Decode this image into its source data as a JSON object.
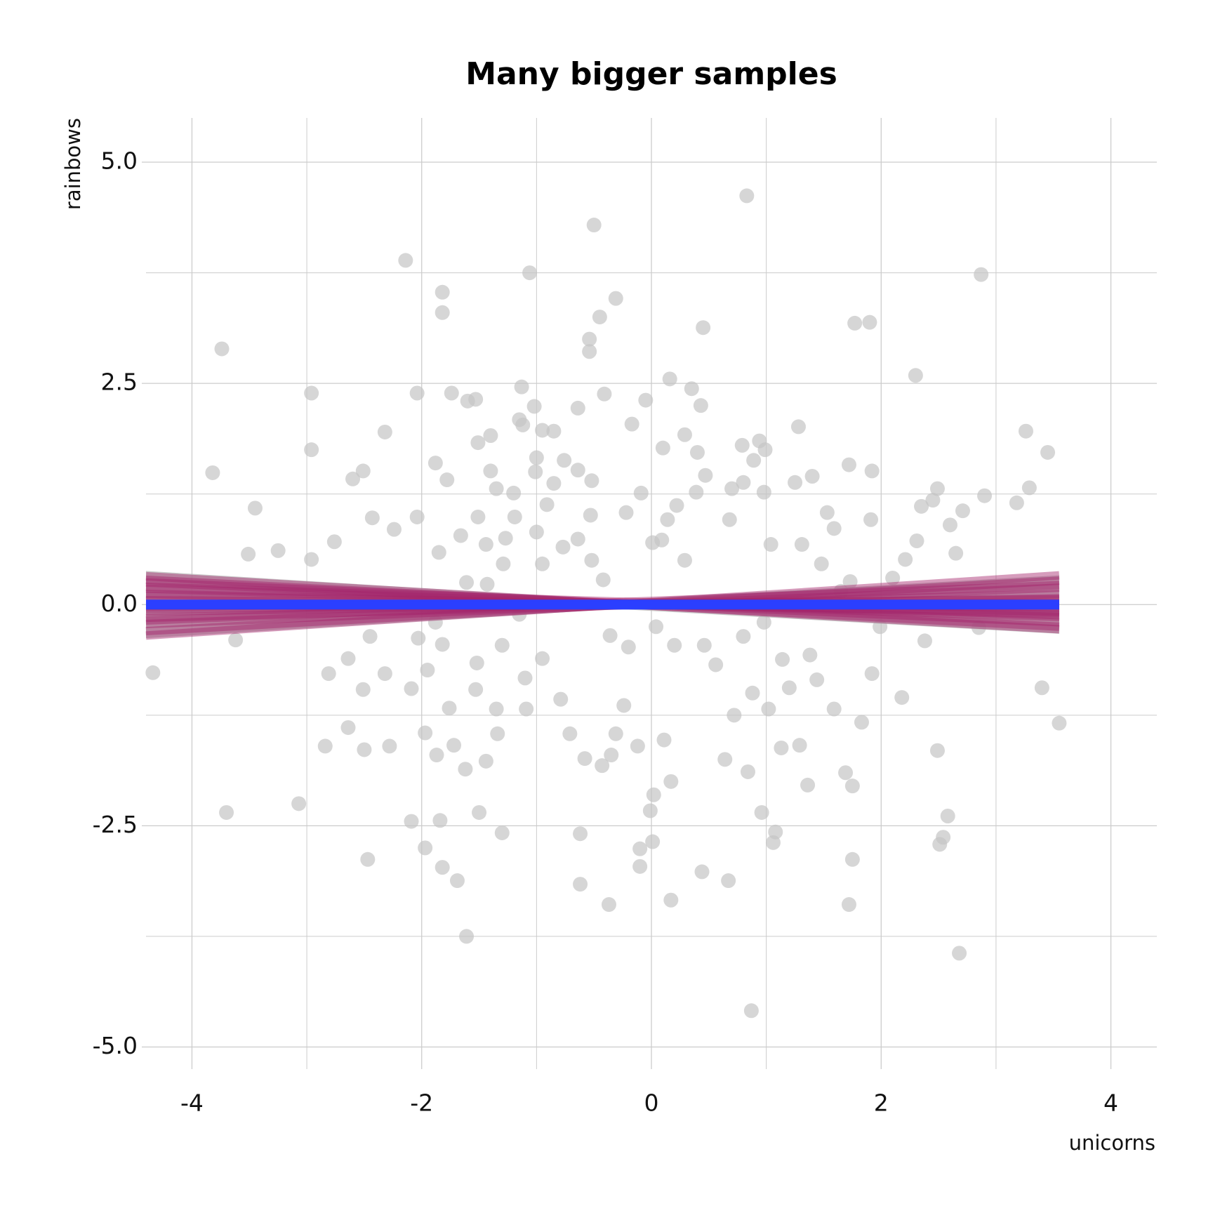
{
  "chart_data": {
    "type": "scatter",
    "title": "Many bigger samples",
    "x_label": "unicorns",
    "y_label": "rainbows",
    "xlim": [
      -4.4,
      4.4
    ],
    "ylim": [
      -5.25,
      5.5
    ],
    "xticks": [
      -4,
      -2,
      0,
      2,
      4
    ],
    "yticks": [
      {
        "value": -5,
        "label": "-5.0"
      },
      {
        "value": -2.5,
        "label": "-2.5"
      },
      {
        "value": 0,
        "label": "0.0"
      },
      {
        "value": 2.5,
        "label": "2.5"
      },
      {
        "value": 5,
        "label": "5.0"
      }
    ],
    "xminor": [
      -3,
      -1,
      1,
      3
    ],
    "yminor": [
      -3.75,
      -1.25,
      1.25,
      3.75
    ],
    "grid": true,
    "grid_color": "#cccccc",
    "point_color": "#c4c4c4",
    "points": [
      {
        "x": -4.34,
        "y": -0.77
      },
      {
        "x": -3.74,
        "y": 2.89
      },
      {
        "x": -3.82,
        "y": 1.49
      },
      {
        "x": -3.7,
        "y": -2.35
      },
      {
        "x": -3.62,
        "y": -0.4
      },
      {
        "x": -3.51,
        "y": 0.57
      },
      {
        "x": -3.45,
        "y": 1.09
      },
      {
        "x": -3.25,
        "y": 0.61
      },
      {
        "x": -3.07,
        "y": -2.25
      },
      {
        "x": -2.96,
        "y": 1.75
      },
      {
        "x": -2.96,
        "y": 2.39
      },
      {
        "x": -2.96,
        "y": 0.51
      },
      {
        "x": -2.84,
        "y": -1.6
      },
      {
        "x": -2.81,
        "y": -0.78
      },
      {
        "x": -2.76,
        "y": 0.71
      },
      {
        "x": -2.64,
        "y": -0.61
      },
      {
        "x": -2.64,
        "y": -1.39
      },
      {
        "x": -2.6,
        "y": 1.42
      },
      {
        "x": -2.51,
        "y": 1.51
      },
      {
        "x": -2.51,
        "y": -0.96
      },
      {
        "x": -2.5,
        "y": -1.64
      },
      {
        "x": -2.47,
        "y": -2.88
      },
      {
        "x": -2.45,
        "y": -0.36
      },
      {
        "x": -2.43,
        "y": 0.98
      },
      {
        "x": -2.32,
        "y": 1.95
      },
      {
        "x": -2.32,
        "y": -0.78
      },
      {
        "x": -2.28,
        "y": -1.6
      },
      {
        "x": -2.24,
        "y": 0.85
      },
      {
        "x": -2.14,
        "y": 3.89
      },
      {
        "x": -2.09,
        "y": -2.45
      },
      {
        "x": -2.09,
        "y": -0.95
      },
      {
        "x": -2.04,
        "y": 0.99
      },
      {
        "x": -2.04,
        "y": 2.39
      },
      {
        "x": -2.03,
        "y": -0.38
      },
      {
        "x": -1.97,
        "y": -1.45
      },
      {
        "x": -1.97,
        "y": -2.75
      },
      {
        "x": -1.95,
        "y": -0.74
      },
      {
        "x": -1.88,
        "y": 1.6
      },
      {
        "x": -1.87,
        "y": -1.7
      },
      {
        "x": -1.85,
        "y": 0.59
      },
      {
        "x": -1.84,
        "y": -2.44
      },
      {
        "x": -1.82,
        "y": -0.45
      },
      {
        "x": -1.82,
        "y": 3.53
      },
      {
        "x": -1.82,
        "y": 3.3
      },
      {
        "x": -1.82,
        "y": -2.97
      },
      {
        "x": -1.78,
        "y": 1.41
      },
      {
        "x": -1.76,
        "y": -1.17
      },
      {
        "x": -1.74,
        "y": 2.39
      },
      {
        "x": -1.72,
        "y": -1.59
      },
      {
        "x": -1.69,
        "y": -3.12
      },
      {
        "x": -1.66,
        "y": 0.78
      },
      {
        "x": -1.62,
        "y": -1.86
      },
      {
        "x": -1.61,
        "y": -3.75
      },
      {
        "x": -1.6,
        "y": 2.3
      },
      {
        "x": -1.53,
        "y": 2.32
      },
      {
        "x": -1.51,
        "y": 1.83
      },
      {
        "x": -1.51,
        "y": 0.99
      },
      {
        "x": -1.5,
        "y": -2.35
      },
      {
        "x": -1.52,
        "y": -0.66
      },
      {
        "x": -1.53,
        "y": -0.96
      },
      {
        "x": -1.44,
        "y": -1.77
      },
      {
        "x": -1.43,
        "y": 0.23
      },
      {
        "x": -1.4,
        "y": 1.91
      },
      {
        "x": -1.4,
        "y": 1.51
      },
      {
        "x": -1.35,
        "y": 1.31
      },
      {
        "x": -1.35,
        "y": -1.18
      },
      {
        "x": -1.34,
        "y": -1.46
      },
      {
        "x": -1.3,
        "y": -2.58
      },
      {
        "x": -1.3,
        "y": -0.46
      },
      {
        "x": -1.27,
        "y": 0.75
      },
      {
        "x": -1.29,
        "y": 0.46
      },
      {
        "x": -1.2,
        "y": 1.26
      },
      {
        "x": -1.19,
        "y": 0.99
      },
      {
        "x": -1.15,
        "y": 2.09
      },
      {
        "x": -1.13,
        "y": 2.46
      },
      {
        "x": -1.12,
        "y": 2.03
      },
      {
        "x": -1.1,
        "y": -0.83
      },
      {
        "x": -1.09,
        "y": -1.18
      },
      {
        "x": -1.06,
        "y": 3.75
      },
      {
        "x": -1.02,
        "y": 2.24
      },
      {
        "x": -1.01,
        "y": 1.5
      },
      {
        "x": -1.0,
        "y": 1.66
      },
      {
        "x": -0.95,
        "y": -0.61
      },
      {
        "x": -0.95,
        "y": 1.97
      },
      {
        "x": -0.91,
        "y": 1.13
      },
      {
        "x": -0.85,
        "y": 1.96
      },
      {
        "x": -0.85,
        "y": 1.37
      },
      {
        "x": -0.79,
        "y": -1.07
      },
      {
        "x": -0.76,
        "y": 1.63
      },
      {
        "x": -0.71,
        "y": -1.46
      },
      {
        "x": -0.64,
        "y": 2.22
      },
      {
        "x": -0.62,
        "y": -2.59
      },
      {
        "x": -0.62,
        "y": -3.16
      },
      {
        "x": -0.64,
        "y": 1.52
      },
      {
        "x": -0.58,
        "y": -1.74
      },
      {
        "x": -0.54,
        "y": 3.0
      },
      {
        "x": -0.54,
        "y": 2.86
      },
      {
        "x": -0.53,
        "y": 1.01
      },
      {
        "x": -0.52,
        "y": 1.4
      },
      {
        "x": -0.5,
        "y": 4.29
      },
      {
        "x": -0.45,
        "y": 3.25
      },
      {
        "x": -0.43,
        "y": -1.82
      },
      {
        "x": -0.41,
        "y": 2.38
      },
      {
        "x": -0.37,
        "y": -3.39
      },
      {
        "x": -0.35,
        "y": -1.7
      },
      {
        "x": -0.31,
        "y": 3.46
      },
      {
        "x": -0.31,
        "y": -1.46
      },
      {
        "x": -0.24,
        "y": -1.14
      },
      {
        "x": -0.22,
        "y": 1.04
      },
      {
        "x": -0.17,
        "y": 2.04
      },
      {
        "x": -0.12,
        "y": -1.6
      },
      {
        "x": -0.1,
        "y": -2.96
      },
      {
        "x": -0.1,
        "y": -2.76
      },
      {
        "x": -0.09,
        "y": 1.26
      },
      {
        "x": -0.05,
        "y": 2.31
      },
      {
        "x": 0.02,
        "y": -2.15
      },
      {
        "x": -0.01,
        "y": -2.33
      },
      {
        "x": 0.01,
        "y": -2.68
      },
      {
        "x": 0.1,
        "y": 1.77
      },
      {
        "x": 0.11,
        "y": -1.53
      },
      {
        "x": 0.16,
        "y": 2.55
      },
      {
        "x": 0.17,
        "y": -2.0
      },
      {
        "x": 0.17,
        "y": -3.34
      },
      {
        "x": 0.29,
        "y": 1.92
      },
      {
        "x": 0.35,
        "y": 2.44
      },
      {
        "x": 0.4,
        "y": 1.72
      },
      {
        "x": 0.43,
        "y": 2.25
      },
      {
        "x": 0.45,
        "y": 3.13
      },
      {
        "x": 0.44,
        "y": -3.02
      },
      {
        "x": 0.47,
        "y": 1.46
      },
      {
        "x": 0.56,
        "y": -0.68
      },
      {
        "x": 0.64,
        "y": -1.75
      },
      {
        "x": 0.67,
        "y": -3.12
      },
      {
        "x": 0.72,
        "y": -1.25
      },
      {
        "x": 0.79,
        "y": 1.8
      },
      {
        "x": 0.83,
        "y": 4.62
      },
      {
        "x": 0.84,
        "y": -1.89
      },
      {
        "x": 0.87,
        "y": -4.59
      },
      {
        "x": 0.88,
        "y": -1.0
      },
      {
        "x": 0.89,
        "y": 1.63
      },
      {
        "x": 0.94,
        "y": 1.85
      },
      {
        "x": 0.96,
        "y": -2.35
      },
      {
        "x": 0.99,
        "y": 1.75
      },
      {
        "x": 1.02,
        "y": -1.18
      },
      {
        "x": 1.06,
        "y": -2.69
      },
      {
        "x": 1.08,
        "y": -2.57
      },
      {
        "x": 1.13,
        "y": -1.62
      },
      {
        "x": 1.2,
        "y": -0.94
      },
      {
        "x": 1.25,
        "y": 1.38
      },
      {
        "x": 1.28,
        "y": 2.01
      },
      {
        "x": 1.29,
        "y": -1.59
      },
      {
        "x": 1.36,
        "y": -2.04
      },
      {
        "x": 1.4,
        "y": 1.45
      },
      {
        "x": 1.44,
        "y": -0.85
      },
      {
        "x": 1.53,
        "y": 1.04
      },
      {
        "x": 1.59,
        "y": -1.18
      },
      {
        "x": 1.59,
        "y": 0.86
      },
      {
        "x": 1.69,
        "y": -1.9
      },
      {
        "x": 1.72,
        "y": -3.39
      },
      {
        "x": 1.72,
        "y": 1.58
      },
      {
        "x": 1.75,
        "y": -2.05
      },
      {
        "x": 1.75,
        "y": -2.88
      },
      {
        "x": 1.77,
        "y": 3.18
      },
      {
        "x": 1.83,
        "y": -1.33
      },
      {
        "x": 1.9,
        "y": 3.19
      },
      {
        "x": 1.92,
        "y": 1.51
      },
      {
        "x": 1.91,
        "y": 0.96
      },
      {
        "x": 1.92,
        "y": -0.78
      },
      {
        "x": 1.99,
        "y": -0.25
      },
      {
        "x": 2.1,
        "y": 0.3
      },
      {
        "x": 2.18,
        "y": -1.05
      },
      {
        "x": 2.21,
        "y": 0.51
      },
      {
        "x": 2.3,
        "y": 2.59
      },
      {
        "x": 2.31,
        "y": 0.72
      },
      {
        "x": 2.35,
        "y": 1.11
      },
      {
        "x": 2.38,
        "y": -0.41
      },
      {
        "x": 2.45,
        "y": 1.18
      },
      {
        "x": 2.49,
        "y": 1.31
      },
      {
        "x": 2.49,
        "y": -1.65
      },
      {
        "x": 2.51,
        "y": -2.71
      },
      {
        "x": 2.54,
        "y": -2.63
      },
      {
        "x": 2.58,
        "y": -2.39
      },
      {
        "x": 2.6,
        "y": 0.9
      },
      {
        "x": 2.65,
        "y": 0.58
      },
      {
        "x": 2.68,
        "y": -3.94
      },
      {
        "x": 2.71,
        "y": 1.06
      },
      {
        "x": 2.85,
        "y": -0.26
      },
      {
        "x": 2.87,
        "y": 3.73
      },
      {
        "x": 2.9,
        "y": 1.23
      },
      {
        "x": 3.18,
        "y": 1.15
      },
      {
        "x": 3.26,
        "y": 1.96
      },
      {
        "x": 3.29,
        "y": 1.32
      },
      {
        "x": 3.4,
        "y": -0.94
      },
      {
        "x": 3.45,
        "y": 1.72
      },
      {
        "x": 3.55,
        "y": -1.34
      },
      {
        "x": 0.01,
        "y": 0.7
      },
      {
        "x": 0.09,
        "y": 0.73
      },
      {
        "x": 0.14,
        "y": 0.96
      },
      {
        "x": 0.22,
        "y": 1.12
      },
      {
        "x": 0.39,
        "y": 1.27
      },
      {
        "x": 0.29,
        "y": 0.5
      },
      {
        "x": -0.52,
        "y": 0.5
      },
      {
        "x": -0.64,
        "y": 0.74
      },
      {
        "x": -0.42,
        "y": 0.28
      },
      {
        "x": -0.36,
        "y": -0.35
      },
      {
        "x": -0.2,
        "y": -0.48
      },
      {
        "x": 0.04,
        "y": -0.25
      },
      {
        "x": 0.2,
        "y": -0.46
      },
      {
        "x": 0.46,
        "y": -0.46
      },
      {
        "x": 0.8,
        "y": -0.36
      },
      {
        "x": 0.98,
        "y": -0.2
      },
      {
        "x": 1.14,
        "y": -0.62
      },
      {
        "x": 1.38,
        "y": -0.57
      },
      {
        "x": -1.15,
        "y": -0.11
      },
      {
        "x": -1.44,
        "y": 0.68
      },
      {
        "x": -0.77,
        "y": 0.65
      },
      {
        "x": -1.0,
        "y": 0.82
      },
      {
        "x": -0.95,
        "y": 0.46
      },
      {
        "x": 1.04,
        "y": 0.68
      },
      {
        "x": 1.31,
        "y": 0.68
      },
      {
        "x": 1.48,
        "y": 0.46
      },
      {
        "x": 1.65,
        "y": 0.15
      },
      {
        "x": 1.73,
        "y": 0.26
      },
      {
        "x": 0.68,
        "y": 0.96
      },
      {
        "x": 0.8,
        "y": 1.38
      },
      {
        "x": 0.7,
        "y": 1.31
      },
      {
        "x": 0.98,
        "y": 1.27
      },
      {
        "x": -1.61,
        "y": 0.25
      },
      {
        "x": -1.88,
        "y": -0.2
      }
    ],
    "ribbon": {
      "x": [
        -4.4,
        -0.3,
        3.55
      ],
      "lower": [
        -0.38,
        -0.05,
        -0.33
      ],
      "upper": [
        0.38,
        0.05,
        0.33
      ],
      "color": "#b8b8b8"
    },
    "fit_color": "#a3236a",
    "fits": [
      {
        "x": [
          -4.4,
          3.55
        ],
        "y": [
          0.32,
          -0.28
        ]
      },
      {
        "x": [
          -4.4,
          3.55
        ],
        "y": [
          0.25,
          -0.2
        ]
      },
      {
        "x": [
          -4.4,
          3.55
        ],
        "y": [
          0.18,
          -0.14
        ]
      },
      {
        "x": [
          -4.4,
          3.55
        ],
        "y": [
          0.1,
          -0.08
        ]
      },
      {
        "x": [
          -4.4,
          3.55
        ],
        "y": [
          0.05,
          -0.03
        ]
      },
      {
        "x": [
          -4.4,
          3.55
        ],
        "y": [
          -0.02,
          0.02
        ]
      },
      {
        "x": [
          -4.4,
          3.55
        ],
        "y": [
          -0.08,
          0.07
        ]
      },
      {
        "x": [
          -4.4,
          3.55
        ],
        "y": [
          -0.15,
          0.12
        ]
      },
      {
        "x": [
          -4.4,
          3.55
        ],
        "y": [
          -0.22,
          0.19
        ]
      },
      {
        "x": [
          -4.4,
          3.55
        ],
        "y": [
          -0.3,
          0.27
        ]
      },
      {
        "x": [
          -4.4,
          3.55
        ],
        "y": [
          -0.35,
          0.33
        ]
      },
      {
        "x": [
          -4.4,
          3.55
        ],
        "y": [
          0.28,
          -0.25
        ]
      },
      {
        "x": [
          -4.4,
          3.55
        ],
        "y": [
          -0.05,
          0.06
        ]
      },
      {
        "x": [
          -4.4,
          3.55
        ],
        "y": [
          0.12,
          -0.1
        ]
      },
      {
        "x": [
          -4.4,
          3.55
        ],
        "y": [
          -0.18,
          0.22
        ]
      },
      {
        "x": [
          -4.4,
          3.55
        ],
        "y": [
          0.2,
          -0.12
        ]
      }
    ],
    "mean_line": {
      "x": [
        -4.4,
        3.55
      ],
      "y": [
        0,
        0
      ],
      "color": "#2b3fff"
    }
  }
}
